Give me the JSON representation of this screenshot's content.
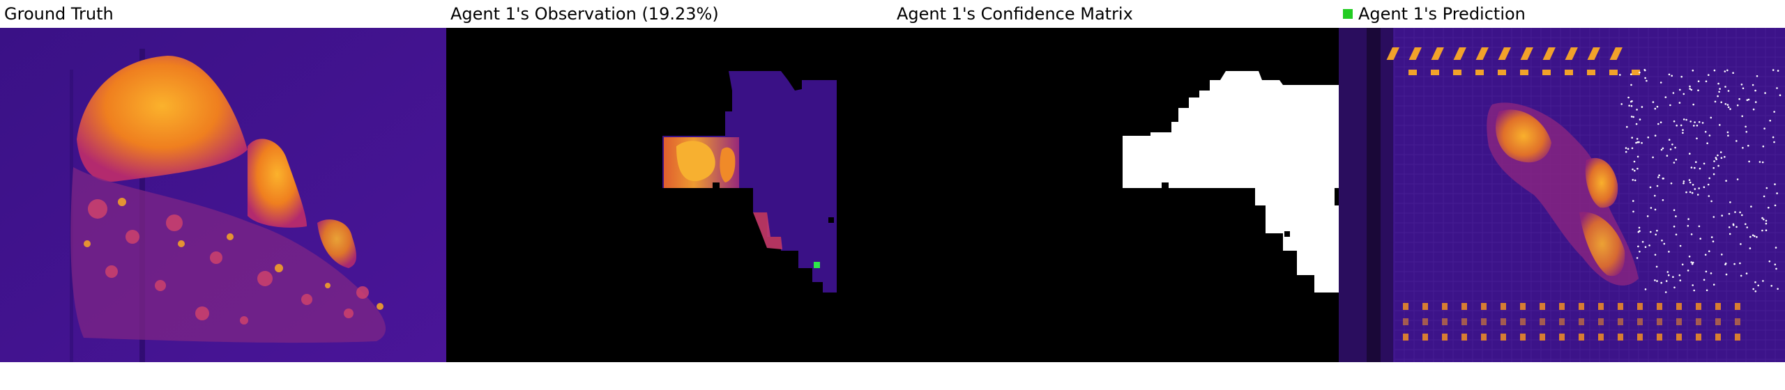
{
  "panels": [
    {
      "title": "Ground Truth"
    },
    {
      "title": "Agent 1's Observation (19.23%)"
    },
    {
      "title": "Agent 1's Confidence Matrix"
    },
    {
      "title": "Agent 1's Prediction",
      "legend_color": "#22cc22"
    }
  ],
  "colors": {
    "background_heat": "#3d128a",
    "hot_orange": "#f39c25",
    "hot_magenta": "#c2306f",
    "mask_white": "#ffffff",
    "mask_black": "#000000",
    "agent_marker": "#2ee64a"
  }
}
